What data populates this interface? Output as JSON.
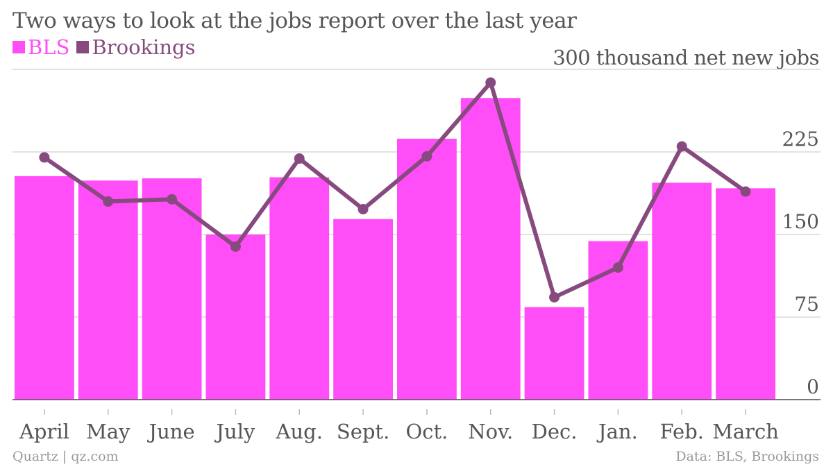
{
  "title": "Two ways to look at the jobs report over the last year",
  "unit_label": "300 thousand net new jobs",
  "legend": [
    {
      "label": "BLS",
      "color": "#ff4ef7"
    },
    {
      "label": "Brookings",
      "color": "#874a7f"
    }
  ],
  "footer": {
    "source_left": "Quartz | qz.com",
    "source_right": "Data: BLS, Brookings"
  },
  "chart_data": {
    "type": "bar",
    "categories": [
      "April",
      "May",
      "June",
      "July",
      "Aug.",
      "Sept.",
      "Oct.",
      "Nov.",
      "Dec.",
      "Jan.",
      "Feb.",
      "March"
    ],
    "series": [
      {
        "name": "BLS",
        "type": "bar",
        "color": "#ff4ef7",
        "values": [
          203,
          199,
          201,
          150,
          202,
          164,
          237,
          274,
          84,
          144,
          197,
          192
        ]
      },
      {
        "name": "Brookings",
        "type": "line",
        "color": "#874a7f",
        "values": [
          220,
          180,
          182,
          139,
          219,
          173,
          221,
          288,
          93,
          120,
          230,
          189
        ]
      }
    ],
    "y_ticks": [
      "0",
      "75",
      "150",
      "225"
    ],
    "ylim": [
      0,
      300
    ],
    "ylabel": "300 thousand net new jobs",
    "grid": true
  }
}
